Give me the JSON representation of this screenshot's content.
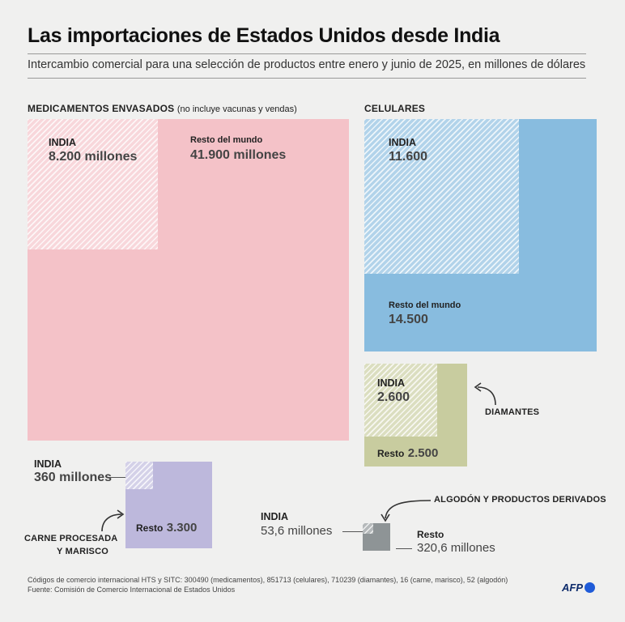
{
  "title": "Las importaciones de Estados Unidos desde India",
  "subtitle": "Intercambio comercial para una selección de productos entre enero y junio de 2025, en millones de dólares",
  "colors": {
    "medicamentos": "#f4c2c8",
    "celulares": "#88bcdf",
    "diamantes": "#c8cc9f",
    "carne": "#bdb8dc",
    "algodon": "#8e9496",
    "india_hatch": "#ffffff"
  },
  "chart_data": [
    {
      "type": "treemap",
      "category": "MEDICAMENTOS ENVASADOS",
      "note": "(no incluye vacunas y vendas)",
      "india": {
        "label": "INDIA",
        "value": 8200,
        "text": "8.200 millones"
      },
      "rest": {
        "label": "Resto del mundo",
        "value": 41900,
        "text": "41.900 millones"
      }
    },
    {
      "type": "treemap",
      "category": "CELULARES",
      "india": {
        "label": "INDIA",
        "value": 11600,
        "text": "11.600"
      },
      "rest": {
        "label": "Resto del mundo",
        "value": 14500,
        "text": "14.500"
      }
    },
    {
      "type": "treemap",
      "category": "DIAMANTES",
      "india": {
        "label": "INDIA",
        "value": 2600,
        "text": "2.600"
      },
      "rest": {
        "label": "Resto",
        "value": 2500,
        "text": "2.500"
      }
    },
    {
      "type": "treemap",
      "category": "CARNE PROCESADA Y MARISCO",
      "category_lines": [
        "CARNE PROCESADA",
        "Y MARISCO"
      ],
      "india": {
        "label": "INDIA",
        "value": 360,
        "text": "360 millones"
      },
      "rest": {
        "label": "Resto",
        "value": 3300,
        "text": "3.300"
      }
    },
    {
      "type": "treemap",
      "category": "ALGODÓN Y PRODUCTOS DERIVADOS",
      "india": {
        "label": "INDIA",
        "value": 53.6,
        "text": "53,6 millones"
      },
      "rest": {
        "label": "Resto",
        "value": 320.6,
        "text": "320,6 millones"
      }
    }
  ],
  "footer": {
    "line1": "Códigos de comercio internacional HTS y SITC: 300490 (medicamentos), 851713 (celulares), 710239 (diamantes), 16 (carne, marisco), 52 (algodón)",
    "line2": "Fuente: Comisión de Comercio Internacional de Estados Unidos"
  },
  "logo": "AFP"
}
